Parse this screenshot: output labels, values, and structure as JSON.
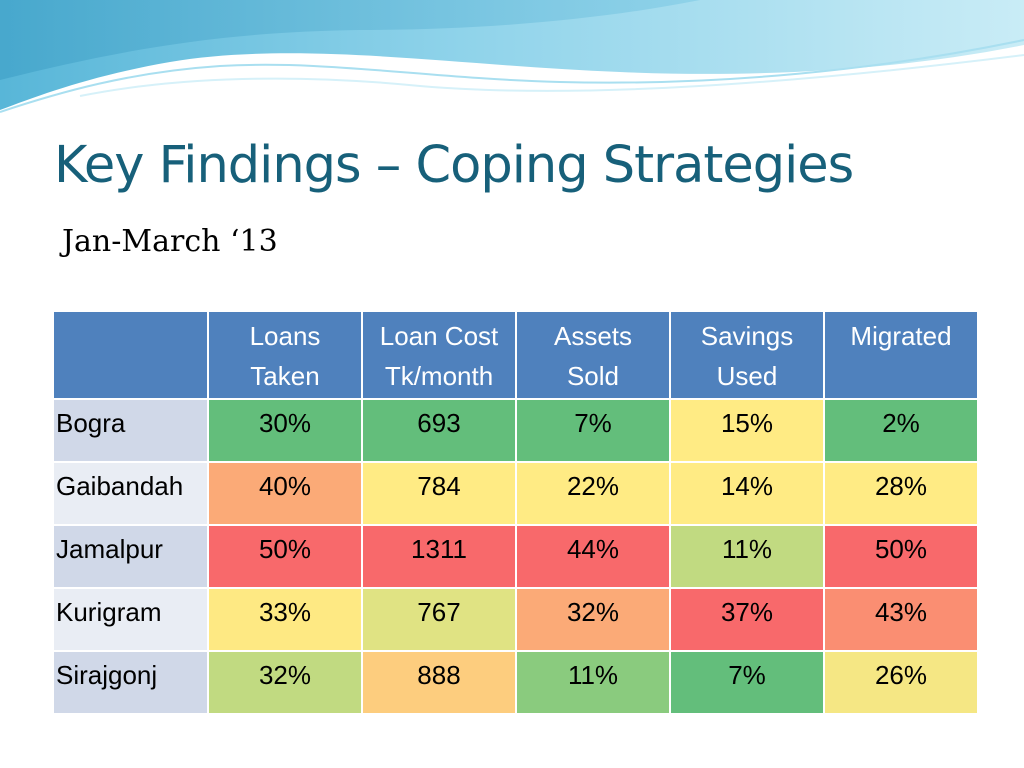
{
  "slide": {
    "title": "Key Findings – Coping Strategies",
    "subtitle": "Jan-March ‘13"
  },
  "table": {
    "header_color": "#4f81bd",
    "columns": [
      "",
      "Loans\nTaken",
      "Loan Cost\nTk/month",
      "Assets\nSold",
      "Savings\nUsed",
      "Migrated"
    ],
    "rows": [
      {
        "label": "Bogra",
        "cells": [
          {
            "value": "30%",
            "color": "#63be7b"
          },
          {
            "value": "693",
            "color": "#63be7b"
          },
          {
            "value": "7%",
            "color": "#63be7b"
          },
          {
            "value": "15%",
            "color": "#ffeb84"
          },
          {
            "value": "2%",
            "color": "#63be7b"
          }
        ]
      },
      {
        "label": "Gaibandah",
        "cells": [
          {
            "value": "40%",
            "color": "#fbaa77"
          },
          {
            "value": "784",
            "color": "#ffeb84"
          },
          {
            "value": "22%",
            "color": "#ffeb84"
          },
          {
            "value": "14%",
            "color": "#ffeb84"
          },
          {
            "value": "28%",
            "color": "#ffeb84"
          }
        ]
      },
      {
        "label": "Jamalpur",
        "cells": [
          {
            "value": "50%",
            "color": "#f8696b"
          },
          {
            "value": "1311",
            "color": "#f8696b"
          },
          {
            "value": "44%",
            "color": "#f8696b"
          },
          {
            "value": "11%",
            "color": "#c1da81"
          },
          {
            "value": "50%",
            "color": "#f8696b"
          }
        ]
      },
      {
        "label": "Kurigram",
        "cells": [
          {
            "value": "33%",
            "color": "#fee983"
          },
          {
            "value": "767",
            "color": "#e0e383"
          },
          {
            "value": "32%",
            "color": "#fbaa77"
          },
          {
            "value": "37%",
            "color": "#f8696b"
          },
          {
            "value": "43%",
            "color": "#fa8e72"
          }
        ]
      },
      {
        "label": "Sirajgonj",
        "cells": [
          {
            "value": "32%",
            "color": "#c1da81"
          },
          {
            "value": "888",
            "color": "#fdcd7e"
          },
          {
            "value": "11%",
            "color": "#8acb7e"
          },
          {
            "value": "7%",
            "color": "#63be7b"
          },
          {
            "value": "26%",
            "color": "#f5e784"
          }
        ]
      }
    ]
  }
}
